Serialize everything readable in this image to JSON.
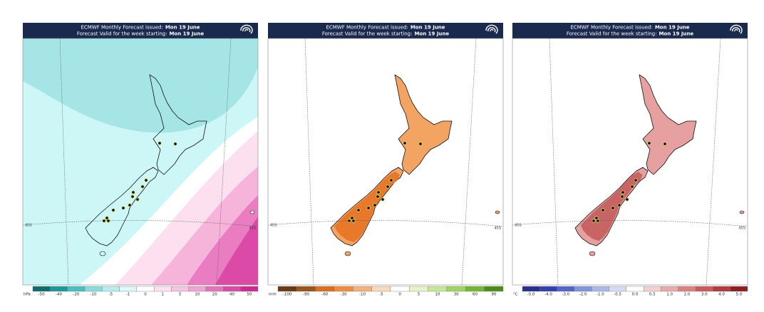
{
  "panels": [
    {
      "header": {
        "issued_label": "ECMWF Monthly Forecast issued:",
        "issued_date": "Mon 19 June",
        "valid_label": "Forecast Valid for the week starting:",
        "valid_date": "Mon 19 June"
      },
      "lat_labels": [
        "45S",
        "45S"
      ],
      "legend": {
        "unit": "hPa",
        "labels": [
          "-50",
          "-40",
          "-20",
          "-10",
          "-5",
          "-1",
          "0",
          "1",
          "5",
          "10",
          "20",
          "40",
          "50"
        ],
        "colors": [
          "#0b6f6f",
          "#179a9a",
          "#45c1c1",
          "#86dcdc",
          "#b6eeee",
          "#dcf8f8",
          "#ffffff",
          "#fde3f0",
          "#f8c3e1",
          "#f2a2d2",
          "#e871bc",
          "#dc4aa8",
          "#cf2a93"
        ]
      }
    },
    {
      "header": {
        "issued_label": "ECMWF Monthly Forecast issued:",
        "issued_date": "Mon 19 June",
        "valid_label": "Forecast Valid for the week starting:",
        "valid_date": "Mon 19 June"
      },
      "lat_labels": [
        "45S",
        "45S"
      ],
      "legend": {
        "unit": "mm",
        "labels": [
          "-100",
          "-90",
          "-60",
          "-30",
          "-10",
          "-5",
          "0",
          "5",
          "10",
          "30",
          "60",
          "90"
        ],
        "colors": [
          "#6b3a12",
          "#9a5518",
          "#e06d1a",
          "#f08c3c",
          "#f5b07a",
          "#fbd9bd",
          "#ffffff",
          "#e6f5c8",
          "#c5e894",
          "#9fd45e",
          "#74b82f",
          "#4f8a1a"
        ]
      }
    },
    {
      "header": {
        "issued_label": "ECMWF Monthly Forecast issued:",
        "issued_date": "Mon 19 June",
        "valid_label": "Forecast Valid for the week starting:",
        "valid_date": "Mon 19 June"
      },
      "lat_labels": [
        "45S",
        "45S"
      ],
      "legend": {
        "unit": "°C",
        "labels": [
          "-5.0",
          "-4.0",
          "-3.0",
          "-2.0",
          "-1.0",
          "-0.5",
          "0.0",
          "0.5",
          "1.0",
          "2.0",
          "3.0",
          "4.0",
          "5.0"
        ],
        "colors": [
          "#2a2f8f",
          "#3340b0",
          "#4f66cc",
          "#7f95dd",
          "#a9b8e8",
          "#d3dcf2",
          "#ffffff",
          "#f4d0d0",
          "#eba9a9",
          "#de8080",
          "#cc5a5a",
          "#b53a3a",
          "#8f1f1f"
        ]
      }
    }
  ]
}
